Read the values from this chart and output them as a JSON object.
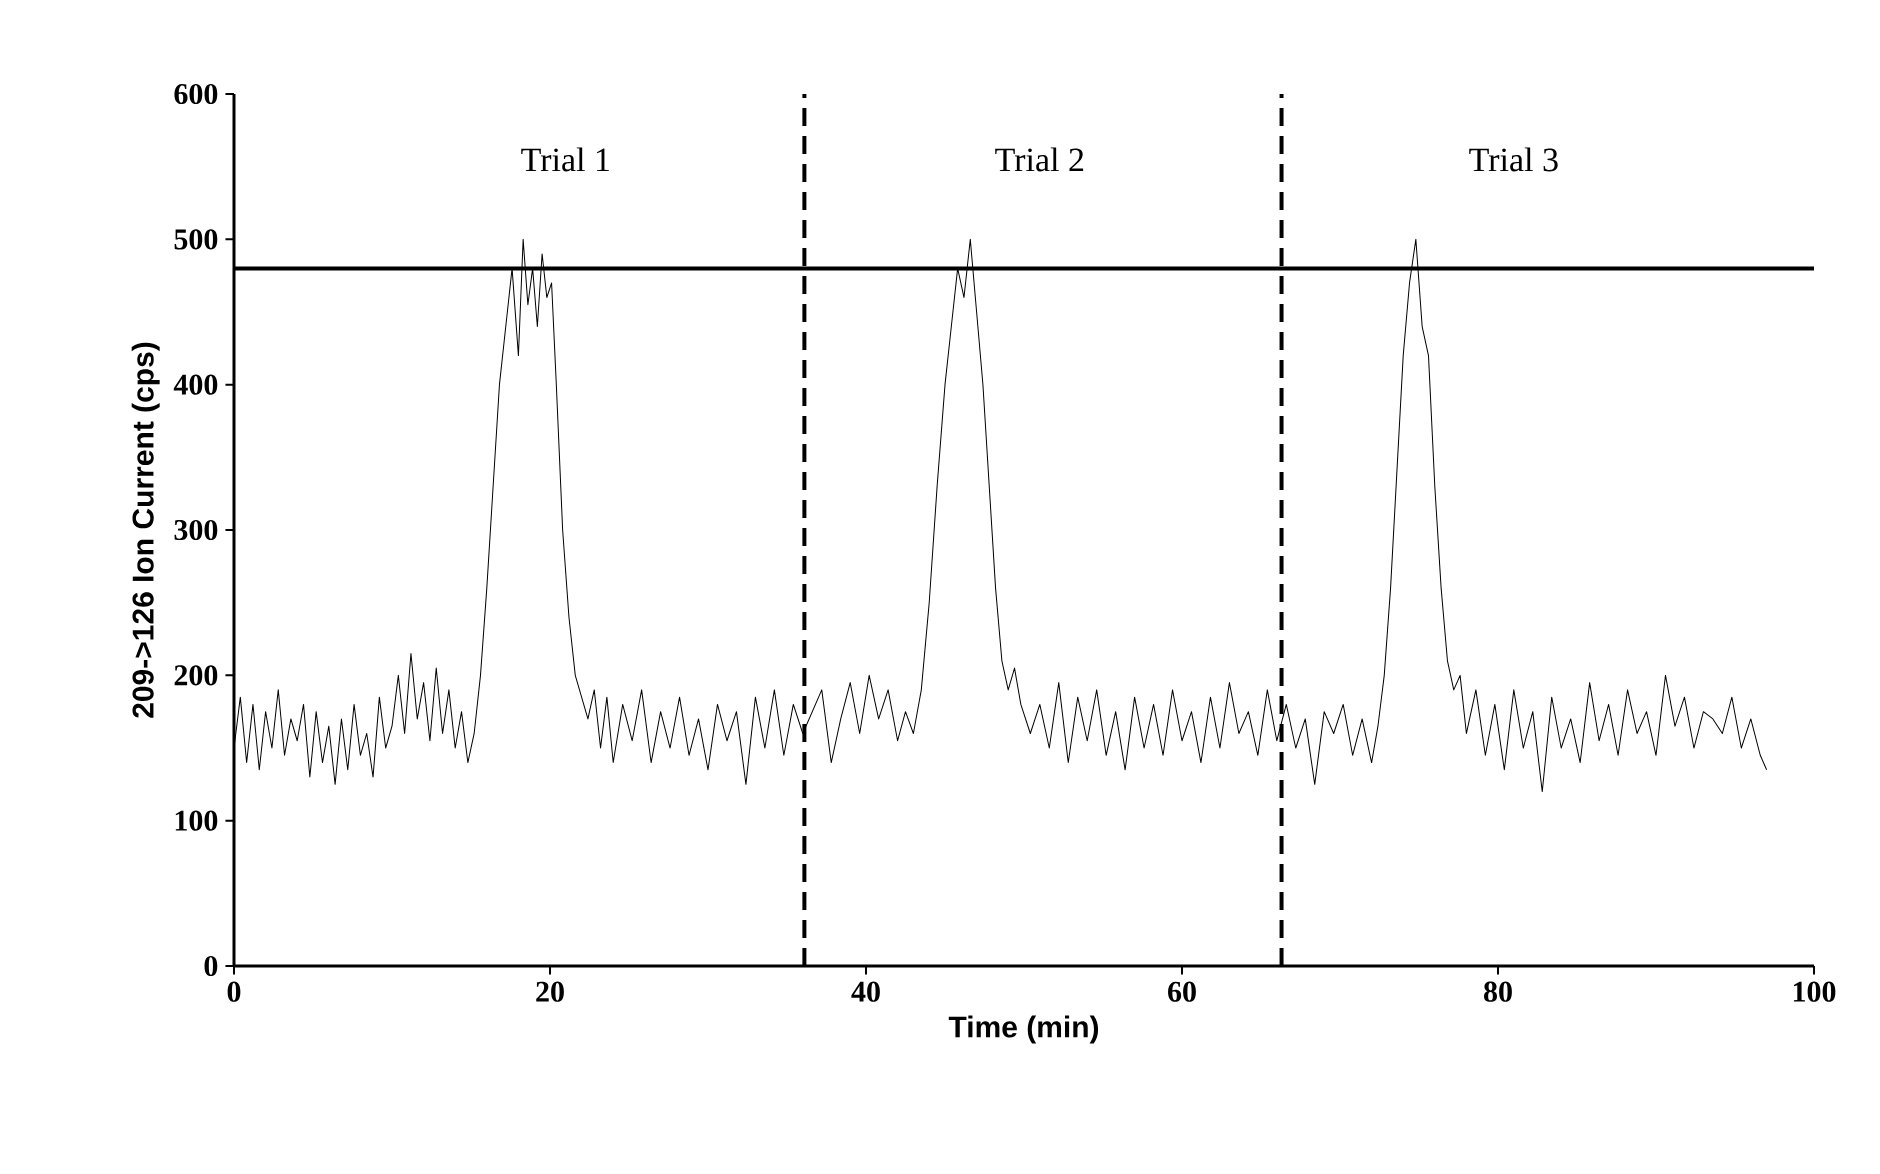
{
  "chart_data": {
    "type": "line",
    "xlabel": "Time (min)",
    "ylabel": "209->126 Ion Current (cps)",
    "xlim": [
      0,
      100
    ],
    "ylim": [
      0,
      600
    ],
    "xticks": [
      0,
      20,
      40,
      60,
      80,
      100
    ],
    "yticks": [
      0,
      100,
      200,
      300,
      400,
      500,
      600
    ],
    "grid": false,
    "marker": "none",
    "line_style": "solid",
    "ref_lines": [
      {
        "axis": "y",
        "value": 480,
        "line_style": "solid",
        "color": "#000000"
      },
      {
        "axis": "x",
        "value": 36.1,
        "line_style": "dashed",
        "color": "#000000"
      },
      {
        "axis": "x",
        "value": 66.3,
        "line_style": "dashed",
        "color": "#000000"
      }
    ],
    "annotations": [
      "Trial 1",
      "Trial 2",
      "Trial 3"
    ],
    "series": [
      {
        "color": "#000000",
        "x": [
          0,
          0.4,
          0.8,
          1.2,
          1.6,
          2,
          2.4,
          2.8,
          3.2,
          3.6,
          4,
          4.4,
          4.8,
          5.2,
          5.6,
          6,
          6.4,
          6.8,
          7.2,
          7.6,
          8,
          8.4,
          8.8,
          9.2,
          9.6,
          10,
          10.4,
          10.8,
          11.2,
          11.6,
          12,
          12.4,
          12.8,
          13.2,
          13.6,
          14,
          14.4,
          14.8,
          15.2,
          15.6,
          16,
          16.4,
          16.8,
          17.2,
          17.6,
          18,
          18.3,
          18.6,
          18.9,
          19.2,
          19.5,
          19.8,
          20.1,
          20.4,
          20.8,
          21.2,
          21.6,
          22,
          22.4,
          22.8,
          23.2,
          23.6,
          24,
          24.6,
          25.2,
          25.8,
          26.4,
          27,
          27.6,
          28.2,
          28.8,
          29.4,
          30,
          30.6,
          31.2,
          31.8,
          32.4,
          33,
          33.6,
          34.2,
          34.8,
          35.4,
          36,
          36.6,
          37.2,
          37.8,
          38.4,
          39,
          39.6,
          40.2,
          40.8,
          41.4,
          42,
          42.5,
          43,
          43.5,
          44,
          44.5,
          45,
          45.4,
          45.8,
          46.2,
          46.6,
          47,
          47.4,
          47.8,
          48.2,
          48.6,
          49,
          49.4,
          49.8,
          50.4,
          51,
          51.6,
          52.2,
          52.8,
          53.4,
          54,
          54.6,
          55.2,
          55.8,
          56.4,
          57,
          57.6,
          58.2,
          58.8,
          59.4,
          60,
          60.6,
          61.2,
          61.8,
          62.4,
          63,
          63.6,
          64.2,
          64.8,
          65.4,
          66,
          66.6,
          67.2,
          67.8,
          68.4,
          69,
          69.6,
          70.2,
          70.8,
          71.4,
          72,
          72.4,
          72.8,
          73.2,
          73.6,
          74,
          74.4,
          74.8,
          75.2,
          75.6,
          76,
          76.4,
          76.8,
          77.2,
          77.6,
          78,
          78.6,
          79.2,
          79.8,
          80.4,
          81,
          81.6,
          82.2,
          82.8,
          83.4,
          84,
          84.6,
          85.2,
          85.8,
          86.4,
          87,
          87.6,
          88.2,
          88.8,
          89.4,
          90,
          90.6,
          91.2,
          91.8,
          92.4,
          93,
          93.6,
          94.2,
          94.8,
          95.4,
          96,
          96.6,
          97
        ],
        "values": [
          150,
          185,
          140,
          180,
          135,
          175,
          150,
          190,
          145,
          170,
          155,
          180,
          130,
          175,
          140,
          165,
          125,
          170,
          135,
          180,
          145,
          160,
          130,
          185,
          150,
          165,
          200,
          160,
          215,
          170,
          195,
          155,
          205,
          160,
          190,
          150,
          175,
          140,
          160,
          200,
          260,
          330,
          400,
          440,
          480,
          420,
          500,
          455,
          480,
          440,
          490,
          460,
          470,
          400,
          300,
          240,
          200,
          185,
          170,
          190,
          150,
          185,
          140,
          180,
          155,
          190,
          140,
          175,
          150,
          185,
          145,
          170,
          135,
          180,
          155,
          175,
          125,
          185,
          150,
          190,
          145,
          180,
          160,
          175,
          190,
          140,
          170,
          195,
          160,
          200,
          170,
          190,
          155,
          175,
          160,
          190,
          250,
          330,
          400,
          440,
          480,
          460,
          500,
          450,
          400,
          330,
          260,
          210,
          190,
          205,
          180,
          160,
          180,
          150,
          195,
          140,
          185,
          155,
          190,
          145,
          175,
          135,
          185,
          150,
          180,
          145,
          190,
          155,
          175,
          140,
          185,
          150,
          195,
          160,
          175,
          145,
          190,
          155,
          180,
          150,
          170,
          125,
          175,
          160,
          180,
          145,
          170,
          140,
          165,
          200,
          260,
          340,
          420,
          470,
          500,
          440,
          420,
          330,
          260,
          210,
          190,
          200,
          160,
          190,
          145,
          180,
          135,
          190,
          150,
          175,
          120,
          185,
          150,
          170,
          140,
          195,
          155,
          180,
          145,
          190,
          160,
          175,
          145,
          200,
          165,
          185,
          150,
          175,
          170,
          160,
          185,
          150,
          170,
          145,
          135
        ]
      }
    ]
  }
}
